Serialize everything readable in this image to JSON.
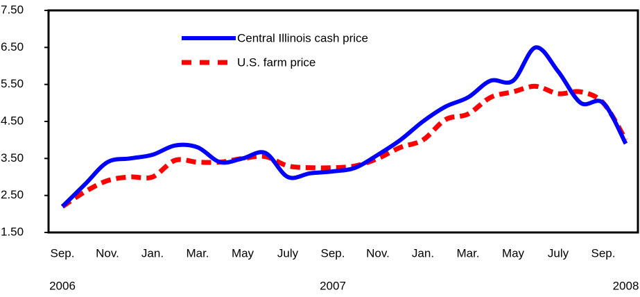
{
  "chart_data": {
    "type": "line",
    "categories": [
      "Sep.",
      null,
      "Nov.",
      null,
      "Jan.",
      null,
      "Mar.",
      null,
      "May",
      null,
      "July",
      null,
      "Sep.",
      null,
      "Nov.",
      null,
      "Jan.",
      null,
      "Mar.",
      null,
      "May",
      null,
      "July",
      null,
      "Sep.",
      null
    ],
    "years": [
      "2006",
      null,
      null,
      null,
      null,
      null,
      null,
      null,
      null,
      null,
      null,
      null,
      "2007",
      null,
      null,
      null,
      null,
      null,
      null,
      null,
      null,
      null,
      null,
      null,
      null,
      "2008"
    ],
    "series": [
      {
        "name": "Central Illinois cash price",
        "color": "#0000ff",
        "dashed": false,
        "values": [
          2.2,
          2.8,
          3.4,
          3.5,
          3.6,
          3.85,
          3.8,
          3.4,
          3.5,
          3.65,
          3.0,
          3.1,
          3.15,
          3.25,
          3.6,
          4.0,
          4.5,
          4.9,
          5.15,
          5.6,
          5.6,
          6.5,
          5.85,
          5.0,
          5.0,
          3.9
        ]
      },
      {
        "name": "U.S. farm price",
        "color": "#ff0000",
        "dashed": true,
        "values": [
          2.2,
          2.6,
          2.9,
          3.0,
          3.0,
          3.45,
          3.4,
          3.4,
          3.5,
          3.55,
          3.3,
          3.25,
          3.25,
          3.3,
          3.5,
          3.8,
          4.0,
          4.55,
          4.7,
          5.15,
          5.3,
          5.45,
          5.25,
          5.3,
          5.0,
          4.0
        ]
      }
    ],
    "ylim": [
      1.5,
      7.5
    ],
    "yticks": [
      {
        "value": 1.5,
        "label": "1.50"
      },
      {
        "value": 2.5,
        "label": "2.50"
      },
      {
        "value": 3.5,
        "label": "3.50"
      },
      {
        "value": 4.5,
        "label": "4.50"
      },
      {
        "value": 5.5,
        "label": "5.50"
      },
      {
        "value": 6.5,
        "label": "6.50"
      },
      {
        "value": 7.5,
        "label": "7.50"
      }
    ]
  }
}
